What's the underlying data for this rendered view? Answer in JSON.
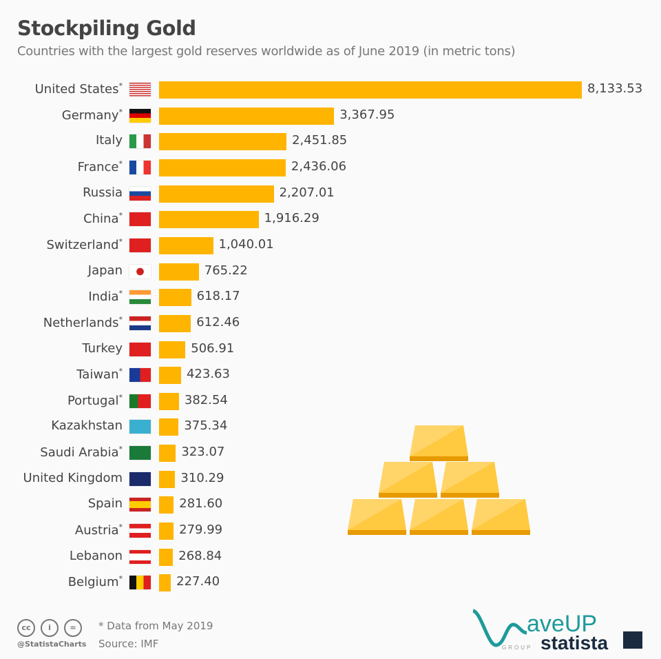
{
  "chart_data": {
    "type": "bar",
    "orientation": "horizontal",
    "title": "Stockpiling Gold",
    "subtitle": "Countries with the largest gold reserves worldwide as of June 2019 (in metric tons)",
    "xlim": [
      0,
      8133.53
    ],
    "categories": [
      "United States",
      "Germany",
      "Italy",
      "France",
      "Russia",
      "China",
      "Switzerland",
      "Japan",
      "India",
      "Netherlands",
      "Turkey",
      "Taiwan",
      "Portugal",
      "Kazakhstan",
      "Saudi Arabia",
      "United Kingdom",
      "Spain",
      "Austria",
      "Lebanon",
      "Belgium"
    ],
    "asterisk": [
      true,
      true,
      false,
      true,
      false,
      true,
      true,
      false,
      true,
      true,
      false,
      true,
      true,
      false,
      true,
      false,
      false,
      true,
      false,
      true
    ],
    "values": [
      8133.53,
      3367.95,
      2451.85,
      2436.06,
      2207.01,
      1916.29,
      1040.01,
      765.22,
      618.17,
      612.46,
      506.91,
      423.63,
      382.54,
      375.34,
      323.07,
      310.29,
      281.6,
      279.99,
      268.84,
      227.4
    ],
    "bar_color": "#ffb400"
  },
  "footer": {
    "note": "* Data from May 2019",
    "source": "Source: IMF",
    "handle": "@StatistaCharts",
    "logo_text": "WaveUP statista GROUP"
  }
}
